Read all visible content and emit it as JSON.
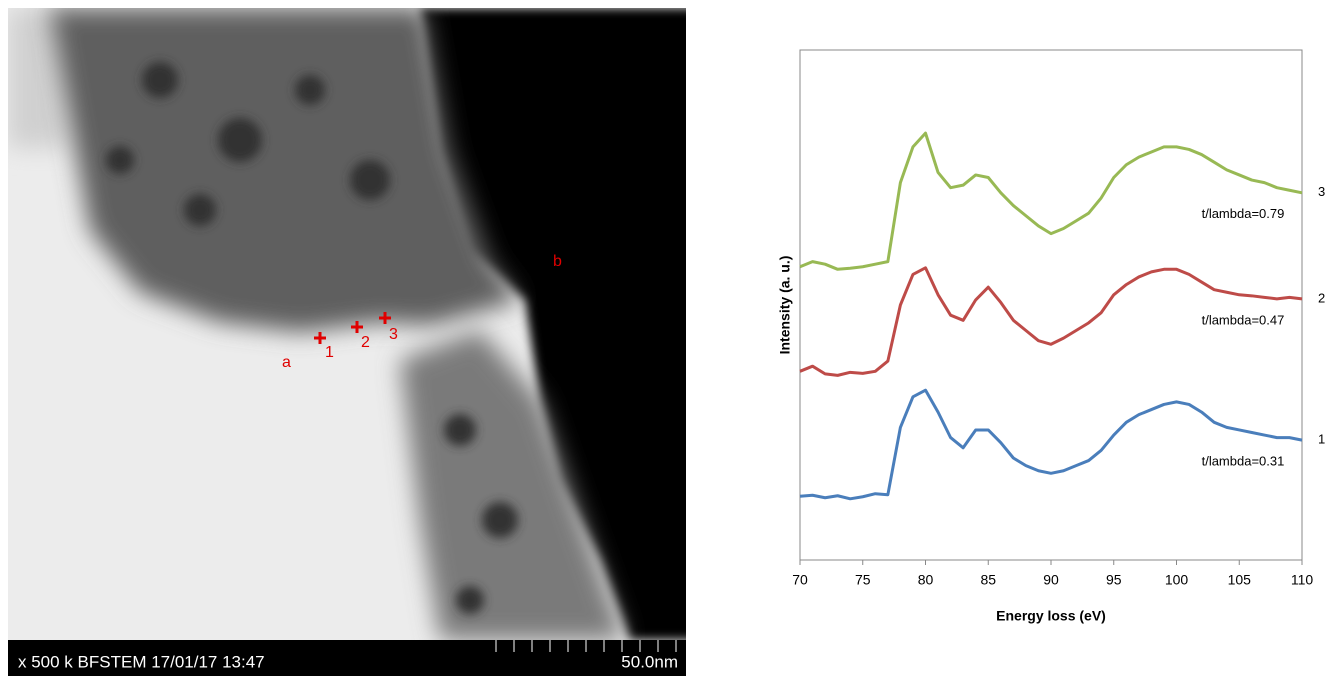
{
  "image": {
    "labels": [
      "a",
      "b"
    ],
    "points": [
      "1",
      "2",
      "3"
    ],
    "info_bar": "x 500 k  BFSTEM  17/01/17  13:47",
    "scale_bar": "50.0nm"
  },
  "chart_data": {
    "type": "line",
    "xlabel": "Energy loss (eV)",
    "ylabel": "Intensity (a. u.)",
    "xlim": [
      70,
      110
    ],
    "xticks": [
      70,
      75,
      80,
      85,
      90,
      95,
      100,
      105,
      110
    ],
    "ylim": [
      0,
      10
    ],
    "x": [
      70,
      71,
      72,
      73,
      74,
      75,
      76,
      77,
      78,
      79,
      80,
      81,
      82,
      83,
      84,
      85,
      86,
      87,
      88,
      89,
      90,
      91,
      92,
      93,
      94,
      95,
      96,
      97,
      98,
      99,
      100,
      101,
      102,
      103,
      104,
      105,
      106,
      107,
      108,
      109,
      110
    ],
    "series": [
      {
        "name": "1",
        "annotation": "t/lambda=0.31",
        "color": "#4a7ebb",
        "values": [
          1.25,
          1.27,
          1.22,
          1.26,
          1.2,
          1.24,
          1.3,
          1.28,
          2.6,
          3.2,
          3.33,
          2.9,
          2.4,
          2.2,
          2.55,
          2.55,
          2.3,
          2.0,
          1.85,
          1.75,
          1.7,
          1.75,
          1.85,
          1.95,
          2.15,
          2.45,
          2.7,
          2.85,
          2.95,
          3.05,
          3.1,
          3.05,
          2.9,
          2.7,
          2.6,
          2.55,
          2.5,
          2.45,
          2.4,
          2.4,
          2.35
        ]
      },
      {
        "name": "2",
        "annotation": "t/lambda=0.47",
        "color": "#be4b48",
        "values": [
          3.7,
          3.8,
          3.65,
          3.62,
          3.68,
          3.66,
          3.7,
          3.9,
          5.0,
          5.6,
          5.73,
          5.2,
          4.8,
          4.7,
          5.1,
          5.35,
          5.05,
          4.7,
          4.5,
          4.3,
          4.23,
          4.35,
          4.5,
          4.65,
          4.85,
          5.2,
          5.4,
          5.55,
          5.65,
          5.7,
          5.7,
          5.6,
          5.45,
          5.3,
          5.25,
          5.2,
          5.18,
          5.15,
          5.12,
          5.15,
          5.12
        ]
      },
      {
        "name": "3",
        "annotation": "t/lambda=0.79",
        "color": "#98b954",
        "values": [
          5.75,
          5.85,
          5.8,
          5.7,
          5.72,
          5.75,
          5.8,
          5.85,
          7.4,
          8.1,
          8.37,
          7.6,
          7.3,
          7.35,
          7.55,
          7.5,
          7.2,
          6.95,
          6.75,
          6.55,
          6.4,
          6.5,
          6.65,
          6.8,
          7.1,
          7.5,
          7.75,
          7.9,
          8.0,
          8.1,
          8.1,
          8.05,
          7.95,
          7.8,
          7.65,
          7.55,
          7.45,
          7.4,
          7.3,
          7.25,
          7.2
        ]
      }
    ]
  }
}
